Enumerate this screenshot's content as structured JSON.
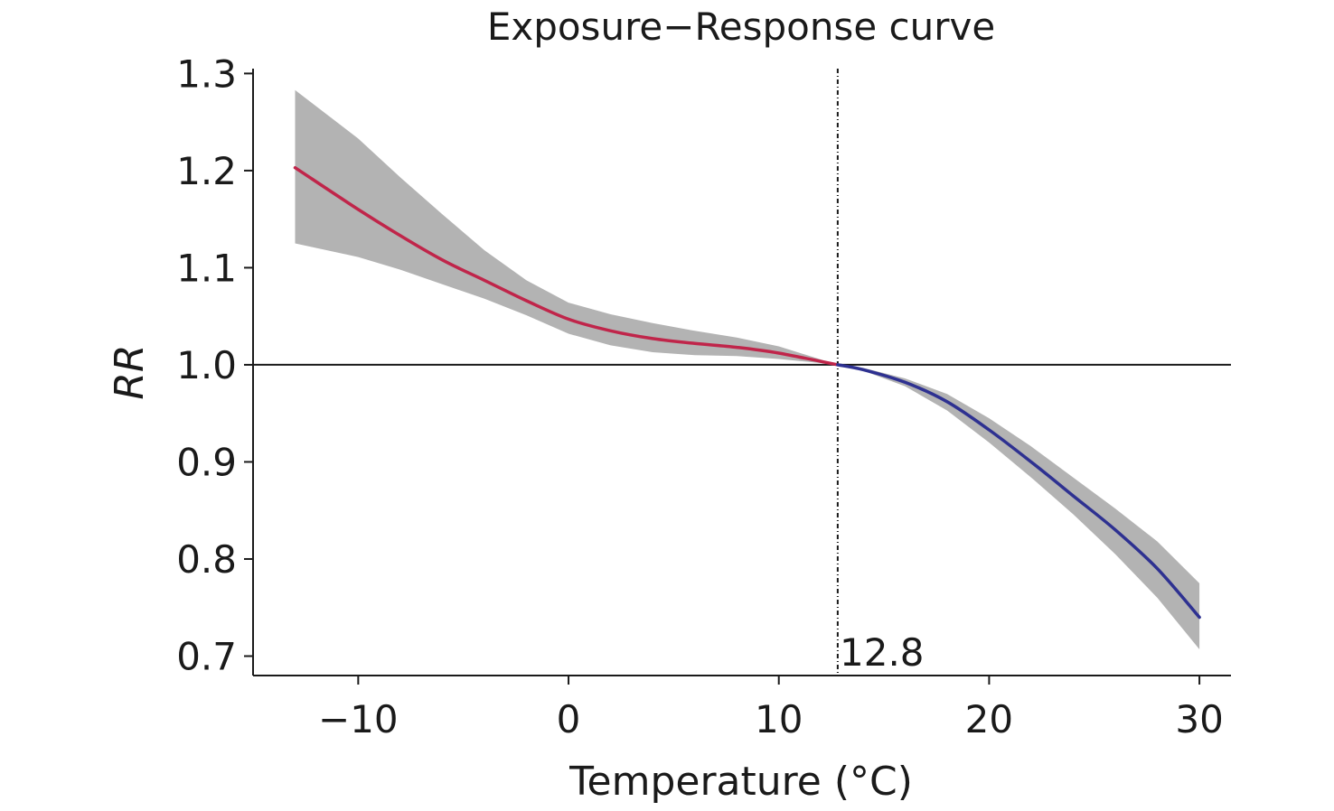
{
  "chart_data": {
    "type": "line",
    "title": "Exposure−Response curve",
    "xlabel": "Temperature (°C)",
    "ylabel": "RR",
    "xlim": [
      -15,
      31.5
    ],
    "ylim": [
      0.68,
      1.305
    ],
    "x_ticks": [
      -10,
      0,
      10,
      20,
      30
    ],
    "x_tick_labels": [
      "−10",
      "0",
      "10",
      "20",
      "30"
    ],
    "y_ticks": [
      0.7,
      0.8,
      0.9,
      1.0,
      1.1,
      1.2,
      1.3
    ],
    "y_tick_labels": [
      "0.7",
      "0.8",
      "0.9",
      "1.0",
      "1.1",
      "1.2",
      "1.3"
    ],
    "reference_line_y": 1.0,
    "threshold": {
      "x": 12.8,
      "label": "12.8"
    },
    "grid": false,
    "series": [
      {
        "segment": "cold",
        "color": "#c0254a",
        "x": [
          -13,
          -10,
          -8,
          -6,
          -4,
          -2,
          0,
          2,
          4,
          6,
          8,
          10,
          12.8
        ],
        "y": [
          1.203,
          1.16,
          1.133,
          1.108,
          1.087,
          1.066,
          1.047,
          1.035,
          1.027,
          1.022,
          1.018,
          1.012,
          1.0
        ],
        "ci_lower": [
          1.125,
          1.111,
          1.098,
          1.083,
          1.068,
          1.051,
          1.032,
          1.02,
          1.013,
          1.01,
          1.009,
          1.006,
          1.0
        ],
        "ci_upper": [
          1.283,
          1.233,
          1.193,
          1.155,
          1.118,
          1.087,
          1.064,
          1.052,
          1.043,
          1.035,
          1.028,
          1.019,
          1.0
        ]
      },
      {
        "segment": "heat",
        "color": "#2e3191",
        "x": [
          12.8,
          14,
          16,
          18,
          20,
          22,
          24,
          26,
          28,
          30
        ],
        "y": [
          1.0,
          0.995,
          0.982,
          0.962,
          0.933,
          0.9,
          0.865,
          0.83,
          0.79,
          0.74
        ],
        "ci_lower": [
          1.0,
          0.994,
          0.978,
          0.953,
          0.92,
          0.884,
          0.846,
          0.805,
          0.76,
          0.707
        ],
        "ci_upper": [
          1.0,
          0.997,
          0.986,
          0.97,
          0.945,
          0.916,
          0.884,
          0.852,
          0.818,
          0.775
        ]
      }
    ],
    "ci_fill_color": "#b3b3b3"
  }
}
